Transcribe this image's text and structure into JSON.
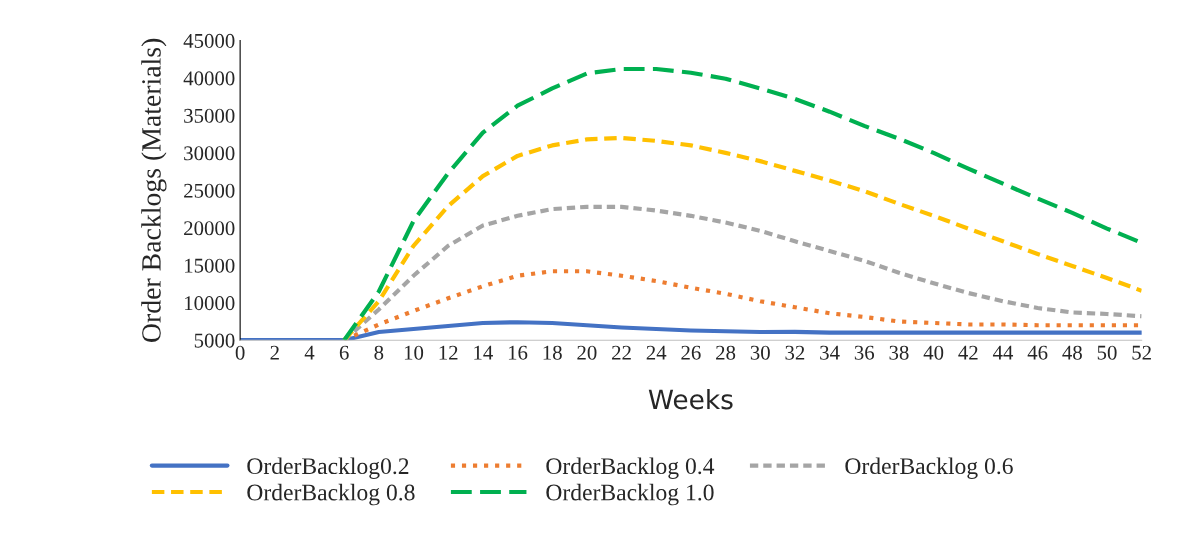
{
  "chart_data": {
    "type": "line",
    "xlabel": "Weeks",
    "ylabel": "Order Backlogs (Materials)",
    "x": [
      0,
      2,
      4,
      6,
      8,
      10,
      12,
      14,
      16,
      18,
      20,
      22,
      24,
      26,
      28,
      30,
      32,
      34,
      36,
      38,
      40,
      42,
      44,
      46,
      48,
      50,
      52
    ],
    "series": [
      {
        "name": "OrderBacklog0.2",
        "color": "#4472c4",
        "line_style": "solid",
        "values": [
          5000,
          5000,
          5000,
          5000,
          6100,
          6500,
          6900,
          7300,
          7400,
          7300,
          7000,
          6700,
          6500,
          6300,
          6200,
          6100,
          6100,
          6000,
          6000,
          6000,
          6000,
          6000,
          6000,
          6000,
          6000,
          6000,
          6000
        ]
      },
      {
        "name": "OrderBacklog 0.4",
        "color": "#ed7d31",
        "line_style": "dotted",
        "values": [
          null,
          null,
          null,
          5000,
          7100,
          8900,
          10600,
          12200,
          13600,
          14200,
          14200,
          13600,
          12900,
          12000,
          11200,
          10200,
          9400,
          8600,
          8100,
          7500,
          7300,
          7100,
          7100,
          7000,
          7000,
          7000,
          7000
        ]
      },
      {
        "name": "OrderBacklog 0.6",
        "color": "#a5a5a5",
        "line_style": "dashed",
        "values": [
          null,
          null,
          null,
          5000,
          9100,
          13600,
          17600,
          20300,
          21600,
          22500,
          22800,
          22800,
          22300,
          21600,
          20700,
          19600,
          18200,
          16900,
          15600,
          14000,
          12600,
          11300,
          10200,
          9300,
          8700,
          8500,
          8200
        ]
      },
      {
        "name": "OrderBacklog 0.8",
        "color": "#ffc000",
        "line_style": "dashed",
        "values": [
          null,
          null,
          null,
          5000,
          10200,
          17600,
          22900,
          26900,
          29600,
          31000,
          31800,
          32000,
          31600,
          31000,
          30000,
          28900,
          27600,
          26300,
          24900,
          23200,
          21600,
          19900,
          18200,
          16500,
          14900,
          13300,
          11600
        ]
      },
      {
        "name": "OrderBacklog 1.0",
        "color": "#00b050",
        "line_style": "dashed",
        "values": [
          null,
          null,
          null,
          5000,
          11500,
          20900,
          27300,
          32700,
          36300,
          38600,
          40600,
          41200,
          41200,
          40700,
          39900,
          38600,
          37200,
          35500,
          33600,
          31900,
          30000,
          27900,
          25900,
          23900,
          22000,
          19900,
          18000
        ]
      }
    ],
    "xlim": [
      0,
      52
    ],
    "xticks": [
      0,
      2,
      4,
      6,
      8,
      10,
      12,
      14,
      16,
      18,
      20,
      22,
      24,
      26,
      28,
      30,
      32,
      34,
      36,
      38,
      40,
      42,
      44,
      46,
      48,
      50,
      52
    ],
    "ylim": [
      5000,
      45000
    ],
    "yticks": [
      5000,
      10000,
      15000,
      20000,
      25000,
      30000,
      35000,
      40000,
      45000
    ],
    "grid": false,
    "legend": "bottom",
    "marker": "none"
  }
}
